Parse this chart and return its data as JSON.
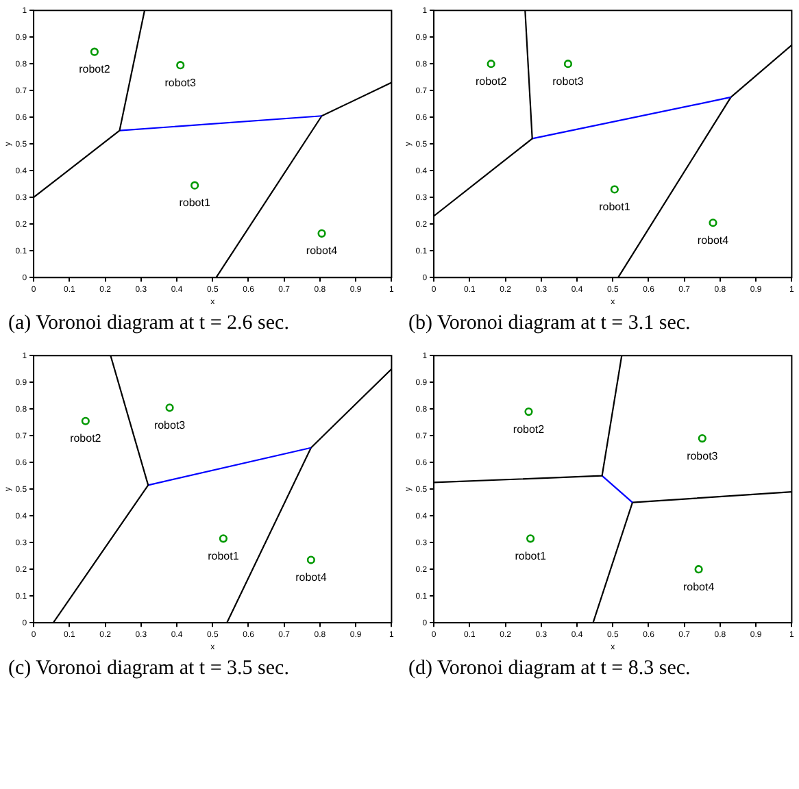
{
  "chart_data": [
    {
      "type": "scatter",
      "title": "(a) Voronoi diagram at t = 2.6 sec.",
      "xlabel": "x",
      "ylabel": "y",
      "xlim": [
        0,
        1
      ],
      "ylim": [
        0,
        1
      ],
      "xticks": [
        0,
        0.1,
        0.2,
        0.3,
        0.4,
        0.5,
        0.6,
        0.7,
        0.8,
        0.9,
        1
      ],
      "yticks": [
        0,
        0.1,
        0.2,
        0.3,
        0.4,
        0.5,
        0.6,
        0.7,
        0.8,
        0.9,
        1
      ],
      "grid": false,
      "legend": false,
      "series": [
        {
          "name": "robot1",
          "marker": "circle",
          "color": "#009900",
          "x": [
            0.45
          ],
          "values": [
            0.345
          ]
        },
        {
          "name": "robot2",
          "marker": "circle",
          "color": "#009900",
          "x": [
            0.17
          ],
          "values": [
            0.845
          ]
        },
        {
          "name": "robot3",
          "marker": "circle",
          "color": "#009900",
          "x": [
            0.41
          ],
          "values": [
            0.795
          ]
        },
        {
          "name": "robot4",
          "marker": "circle",
          "color": "#009900",
          "x": [
            0.805
          ],
          "values": [
            0.165
          ]
        },
        {
          "type": "line",
          "color": "#000000",
          "x": [
            0.31,
            0.24,
            0
          ],
          "values": [
            1,
            0.55,
            0.3
          ]
        },
        {
          "type": "line",
          "color": "#0000ff",
          "x": [
            0.24,
            0.805
          ],
          "values": [
            0.55,
            0.605
          ]
        },
        {
          "type": "line",
          "color": "#000000",
          "x": [
            1,
            0.805,
            0.51
          ],
          "values": [
            0.73,
            0.605,
            0
          ]
        }
      ]
    },
    {
      "type": "scatter",
      "title": "(b) Voronoi diagram at t = 3.1 sec.",
      "xlabel": "x",
      "ylabel": "y",
      "xlim": [
        0,
        1
      ],
      "ylim": [
        0,
        1
      ],
      "xticks": [
        0,
        0.1,
        0.2,
        0.3,
        0.4,
        0.5,
        0.6,
        0.7,
        0.8,
        0.9,
        1
      ],
      "yticks": [
        0,
        0.1,
        0.2,
        0.3,
        0.4,
        0.5,
        0.6,
        0.7,
        0.8,
        0.9,
        1
      ],
      "grid": false,
      "legend": false,
      "series": [
        {
          "name": "robot1",
          "marker": "circle",
          "color": "#009900",
          "x": [
            0.505
          ],
          "values": [
            0.33
          ]
        },
        {
          "name": "robot2",
          "marker": "circle",
          "color": "#009900",
          "x": [
            0.16
          ],
          "values": [
            0.8
          ]
        },
        {
          "name": "robot3",
          "marker": "circle",
          "color": "#009900",
          "x": [
            0.375
          ],
          "values": [
            0.8
          ]
        },
        {
          "name": "robot4",
          "marker": "circle",
          "color": "#009900",
          "x": [
            0.78
          ],
          "values": [
            0.205
          ]
        },
        {
          "type": "line",
          "color": "#000000",
          "x": [
            0.255,
            0.275,
            0
          ],
          "values": [
            1,
            0.52,
            0.23
          ]
        },
        {
          "type": "line",
          "color": "#0000ff",
          "x": [
            0.275,
            0.83
          ],
          "values": [
            0.52,
            0.675
          ]
        },
        {
          "type": "line",
          "color": "#000000",
          "x": [
            1,
            0.83,
            0.515
          ],
          "values": [
            0.87,
            0.675,
            0
          ]
        }
      ]
    },
    {
      "type": "scatter",
      "title": "(c) Voronoi diagram at t = 3.5 sec.",
      "xlabel": "x",
      "ylabel": "y",
      "xlim": [
        0,
        1
      ],
      "ylim": [
        0,
        1
      ],
      "xticks": [
        0,
        0.1,
        0.2,
        0.3,
        0.4,
        0.5,
        0.6,
        0.7,
        0.8,
        0.9,
        1
      ],
      "yticks": [
        0,
        0.1,
        0.2,
        0.3,
        0.4,
        0.5,
        0.6,
        0.7,
        0.8,
        0.9,
        1
      ],
      "grid": false,
      "legend": false,
      "series": [
        {
          "name": "robot1",
          "marker": "circle",
          "color": "#009900",
          "x": [
            0.53
          ],
          "values": [
            0.315
          ]
        },
        {
          "name": "robot2",
          "marker": "circle",
          "color": "#009900",
          "x": [
            0.145
          ],
          "values": [
            0.755
          ]
        },
        {
          "name": "robot3",
          "marker": "circle",
          "color": "#009900",
          "x": [
            0.38
          ],
          "values": [
            0.805
          ]
        },
        {
          "name": "robot4",
          "marker": "circle",
          "color": "#009900",
          "x": [
            0.775
          ],
          "values": [
            0.235
          ]
        },
        {
          "type": "line",
          "color": "#000000",
          "x": [
            0.215,
            0.32,
            0.055
          ],
          "values": [
            1,
            0.515,
            0
          ]
        },
        {
          "type": "line",
          "color": "#0000ff",
          "x": [
            0.32,
            0.775
          ],
          "values": [
            0.515,
            0.655
          ]
        },
        {
          "type": "line",
          "color": "#000000",
          "x": [
            1,
            0.775,
            0.54
          ],
          "values": [
            0.95,
            0.655,
            0
          ]
        }
      ]
    },
    {
      "type": "scatter",
      "title": "(d) Voronoi diagram at t = 8.3 sec.",
      "xlabel": "x",
      "ylabel": "y",
      "xlim": [
        0,
        1
      ],
      "ylim": [
        0,
        1
      ],
      "xticks": [
        0,
        0.1,
        0.2,
        0.3,
        0.4,
        0.5,
        0.6,
        0.7,
        0.8,
        0.9,
        1
      ],
      "yticks": [
        0,
        0.1,
        0.2,
        0.3,
        0.4,
        0.5,
        0.6,
        0.7,
        0.8,
        0.9,
        1
      ],
      "grid": false,
      "legend": false,
      "series": [
        {
          "name": "robot1",
          "marker": "circle",
          "color": "#009900",
          "x": [
            0.27
          ],
          "values": [
            0.315
          ]
        },
        {
          "name": "robot2",
          "marker": "circle",
          "color": "#009900",
          "x": [
            0.265
          ],
          "values": [
            0.79
          ]
        },
        {
          "name": "robot3",
          "marker": "circle",
          "color": "#009900",
          "x": [
            0.75
          ],
          "values": [
            0.69
          ]
        },
        {
          "name": "robot4",
          "marker": "circle",
          "color": "#009900",
          "x": [
            0.74
          ],
          "values": [
            0.2
          ]
        },
        {
          "type": "line",
          "color": "#000000",
          "x": [
            0,
            0.47,
            0.525
          ],
          "values": [
            0.525,
            0.55,
            1
          ]
        },
        {
          "type": "line",
          "color": "#0000ff",
          "x": [
            0.47,
            0.555
          ],
          "values": [
            0.55,
            0.45
          ]
        },
        {
          "type": "line",
          "color": "#000000",
          "x": [
            1,
            0.555,
            0.445
          ],
          "values": [
            0.49,
            0.45,
            0
          ]
        }
      ]
    }
  ]
}
